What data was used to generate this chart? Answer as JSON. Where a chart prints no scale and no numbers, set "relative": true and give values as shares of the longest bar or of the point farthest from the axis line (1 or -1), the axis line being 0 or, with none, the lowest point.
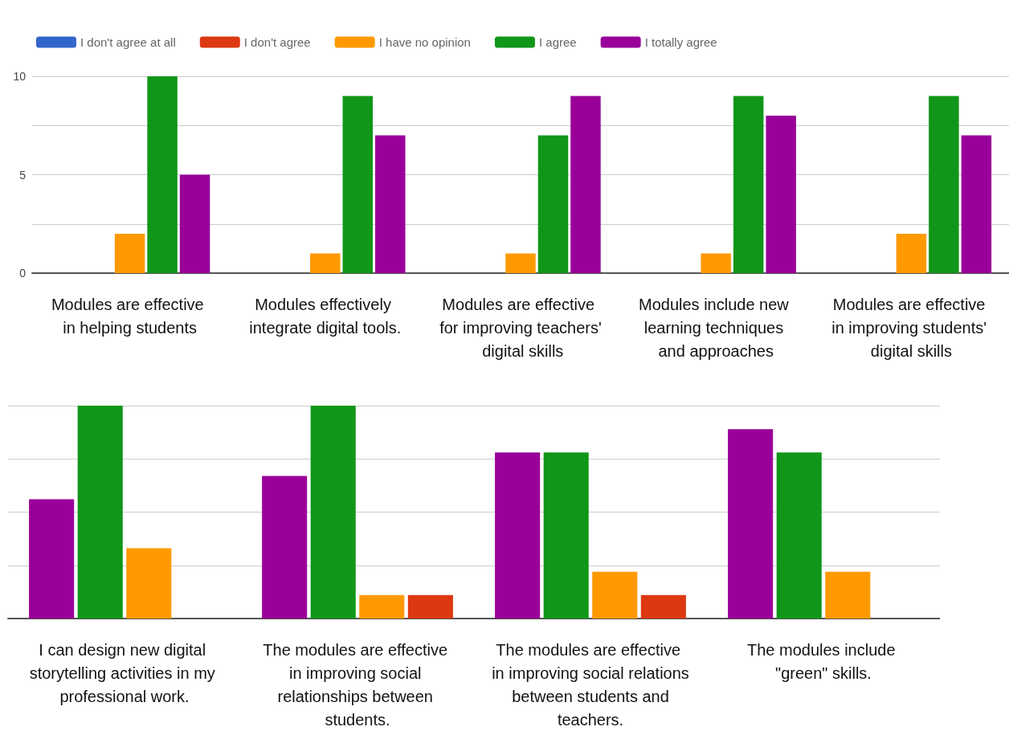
{
  "chart_data": [
    {
      "type": "bar",
      "categories": [
        "Modules are effective in helping students",
        "Modules effectively integrate digital tools.",
        "Modules are effective for improving teachers' digital skills",
        "Modules include new learning techniques and approaches",
        "Modules are effective in improving students' digital skills"
      ],
      "series": [
        {
          "name": "I don't agree at all",
          "color": "#3366cc",
          "values": [
            0,
            0,
            0,
            0,
            0
          ]
        },
        {
          "name": "I don't agree",
          "color": "#dc3912",
          "values": [
            0,
            0,
            0,
            0,
            0
          ]
        },
        {
          "name": "I have no opinion",
          "color": "#ff9900",
          "values": [
            2,
            1,
            1,
            1,
            2
          ]
        },
        {
          "name": "I agree",
          "color": "#109618",
          "values": [
            10,
            9,
            7,
            9,
            9
          ]
        },
        {
          "name": "I totally agree",
          "color": "#990099",
          "values": [
            5,
            7,
            9,
            8,
            7
          ]
        }
      ],
      "ylim": [
        0,
        10
      ],
      "yticks": [
        0,
        {
          "value": 2.5,
          "label": null
        },
        5,
        {
          "value": 7.5,
          "label": null
        },
        10
      ],
      "grid": "y",
      "legend": "top left"
    },
    {
      "type": "bar",
      "relative": true,
      "categories": [
        "I can design new digital storytelling activities in my professional work.",
        "The modules are effective in improving social relationships between students.",
        "The modules are effective in improving social relations between students and teachers.",
        "The modules include \"green\" skills."
      ],
      "series": [
        {
          "color": "#990099",
          "values": [
            0.56,
            0.67,
            0.78,
            0.89
          ]
        },
        {
          "color": "#109618",
          "values": [
            1,
            1,
            0.78,
            0.78
          ]
        },
        {
          "color": "#ff9900",
          "values": [
            0.33,
            0.11,
            0.22,
            0.22
          ]
        },
        {
          "color": "#dc3912",
          "values": [
            0,
            0.11,
            0.11,
            0
          ]
        }
      ],
      "grid": "y"
    }
  ]
}
